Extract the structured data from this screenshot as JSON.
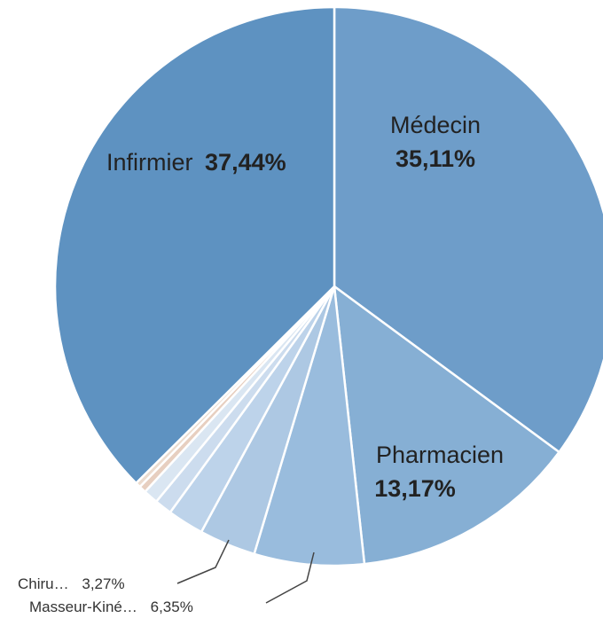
{
  "chart_data": {
    "type": "pie",
    "title": "",
    "slices": [
      {
        "label": "Médecin",
        "display_label": "Médecin",
        "value": 35.11,
        "value_text": "35,11%",
        "color": "#6e9dc9"
      },
      {
        "label": "Pharmacien",
        "display_label": "Pharmacien",
        "value": 13.17,
        "value_text": "13,17%",
        "color": "#86afd4"
      },
      {
        "label": "Masseur-Kiné…",
        "display_label": "Masseur-Kiné…",
        "value": 6.35,
        "value_text": "6,35%",
        "color": "#99bcdd"
      },
      {
        "label": "Chiru…",
        "display_label": "Chiru…",
        "value": 3.27,
        "value_text": "3,27%",
        "color": "#adc8e3"
      },
      {
        "label": "",
        "value": 2.1,
        "color": "#bdd3ea"
      },
      {
        "label": "",
        "value": 1.0,
        "color": "#ccdcee"
      },
      {
        "label": "",
        "value": 0.85,
        "color": "#dae6f2"
      },
      {
        "label": "",
        "value": 0.41,
        "color": "#e7cfc0"
      },
      {
        "label": "",
        "value": 0.3,
        "color": "#ecdccf"
      },
      {
        "label": "Infirmier",
        "display_label": "Infirmier",
        "value": 37.44,
        "value_text": "37,44%",
        "color": "#5e92c1"
      }
    ],
    "legend": "none"
  }
}
